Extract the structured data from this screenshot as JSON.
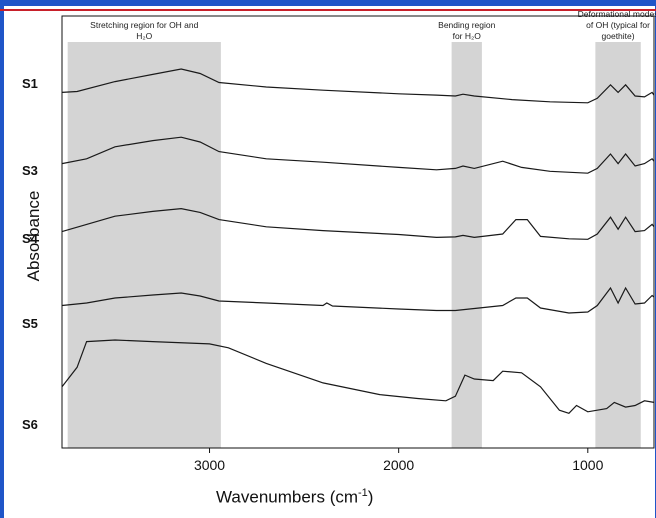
{
  "chart_data": {
    "type": "line",
    "xlabel": "Wavenumbers (cm",
    "xlabel_sup": "-1",
    "xlabel_end": ")",
    "ylabel": "Absorbance",
    "xlim": [
      3780,
      650
    ],
    "x_reversed": true,
    "grid": false,
    "x_ticks": [
      "3000",
      "2000",
      "1000"
    ],
    "regions": [
      {
        "lines": [
          "Stretching region for OH and",
          "H₂O"
        ],
        "range": [
          3750,
          2940
        ]
      },
      {
        "lines": [
          "Bending region",
          "for H₂O"
        ],
        "range": [
          1720,
          1560
        ]
      },
      {
        "lines": [
          "Deformational modes",
          "of OH (typical for",
          "goethite)"
        ],
        "range": [
          960,
          720
        ]
      }
    ],
    "series": [
      {
        "name": "S1",
        "points": [
          [
            3780,
            0.28
          ],
          [
            3700,
            0.3
          ],
          [
            3500,
            0.52
          ],
          [
            3300,
            0.68
          ],
          [
            3150,
            0.8
          ],
          [
            3050,
            0.7
          ],
          [
            2950,
            0.5
          ],
          [
            2700,
            0.4
          ],
          [
            2400,
            0.33
          ],
          [
            2000,
            0.25
          ],
          [
            1800,
            0.22
          ],
          [
            1700,
            0.2
          ],
          [
            1660,
            0.24
          ],
          [
            1600,
            0.2
          ],
          [
            1400,
            0.12
          ],
          [
            1200,
            0.07
          ],
          [
            1000,
            0.05
          ],
          [
            950,
            0.15
          ],
          [
            880,
            0.45
          ],
          [
            840,
            0.28
          ],
          [
            800,
            0.45
          ],
          [
            750,
            0.2
          ],
          [
            700,
            0.18
          ],
          [
            660,
            0.28
          ],
          [
            650,
            0.22
          ]
        ]
      },
      {
        "name": "S3",
        "points": [
          [
            3780,
            0.3
          ],
          [
            3650,
            0.4
          ],
          [
            3500,
            0.65
          ],
          [
            3300,
            0.78
          ],
          [
            3150,
            0.85
          ],
          [
            3050,
            0.75
          ],
          [
            2950,
            0.55
          ],
          [
            2700,
            0.4
          ],
          [
            2400,
            0.33
          ],
          [
            2000,
            0.22
          ],
          [
            1800,
            0.17
          ],
          [
            1700,
            0.2
          ],
          [
            1660,
            0.25
          ],
          [
            1600,
            0.2
          ],
          [
            1450,
            0.35
          ],
          [
            1350,
            0.22
          ],
          [
            1200,
            0.14
          ],
          [
            1000,
            0.1
          ],
          [
            950,
            0.2
          ],
          [
            880,
            0.5
          ],
          [
            840,
            0.3
          ],
          [
            800,
            0.5
          ],
          [
            750,
            0.25
          ],
          [
            700,
            0.3
          ],
          [
            660,
            0.4
          ],
          [
            650,
            0.35
          ]
        ]
      },
      {
        "name": "S4",
        "points": [
          [
            3780,
            0.3
          ],
          [
            3650,
            0.45
          ],
          [
            3500,
            0.62
          ],
          [
            3300,
            0.72
          ],
          [
            3150,
            0.78
          ],
          [
            3050,
            0.7
          ],
          [
            2950,
            0.55
          ],
          [
            2700,
            0.4
          ],
          [
            2400,
            0.32
          ],
          [
            2000,
            0.24
          ],
          [
            1800,
            0.18
          ],
          [
            1700,
            0.19
          ],
          [
            1660,
            0.22
          ],
          [
            1600,
            0.18
          ],
          [
            1450,
            0.25
          ],
          [
            1380,
            0.55
          ],
          [
            1320,
            0.55
          ],
          [
            1250,
            0.2
          ],
          [
            1100,
            0.15
          ],
          [
            1000,
            0.14
          ],
          [
            950,
            0.25
          ],
          [
            880,
            0.6
          ],
          [
            840,
            0.35
          ],
          [
            800,
            0.6
          ],
          [
            750,
            0.3
          ],
          [
            700,
            0.32
          ],
          [
            660,
            0.45
          ],
          [
            650,
            0.4
          ]
        ]
      },
      {
        "name": "S5",
        "points": [
          [
            3780,
            0.25
          ],
          [
            3650,
            0.3
          ],
          [
            3500,
            0.4
          ],
          [
            3300,
            0.46
          ],
          [
            3150,
            0.5
          ],
          [
            3050,
            0.44
          ],
          [
            2950,
            0.34
          ],
          [
            2700,
            0.3
          ],
          [
            2400,
            0.25
          ],
          [
            2380,
            0.3
          ],
          [
            2350,
            0.24
          ],
          [
            2000,
            0.18
          ],
          [
            1800,
            0.15
          ],
          [
            1700,
            0.15
          ],
          [
            1450,
            0.25
          ],
          [
            1380,
            0.4
          ],
          [
            1320,
            0.4
          ],
          [
            1250,
            0.2
          ],
          [
            1100,
            0.1
          ],
          [
            1000,
            0.12
          ],
          [
            950,
            0.25
          ],
          [
            880,
            0.6
          ],
          [
            840,
            0.3
          ],
          [
            800,
            0.6
          ],
          [
            750,
            0.28
          ],
          [
            700,
            0.3
          ],
          [
            660,
            0.45
          ],
          [
            650,
            0.42
          ]
        ]
      },
      {
        "name": "S6",
        "points": [
          [
            3780,
            0.4
          ],
          [
            3700,
            0.65
          ],
          [
            3650,
            0.98
          ],
          [
            3500,
            1.0
          ],
          [
            3300,
            0.98
          ],
          [
            3000,
            0.95
          ],
          [
            2900,
            0.9
          ],
          [
            2700,
            0.7
          ],
          [
            2400,
            0.45
          ],
          [
            2100,
            0.3
          ],
          [
            1900,
            0.25
          ],
          [
            1750,
            0.22
          ],
          [
            1700,
            0.28
          ],
          [
            1650,
            0.55
          ],
          [
            1600,
            0.5
          ],
          [
            1500,
            0.48
          ],
          [
            1450,
            0.6
          ],
          [
            1350,
            0.58
          ],
          [
            1250,
            0.4
          ],
          [
            1150,
            0.1
          ],
          [
            1100,
            0.06
          ],
          [
            1060,
            0.16
          ],
          [
            1000,
            0.08
          ],
          [
            900,
            0.12
          ],
          [
            860,
            0.2
          ],
          [
            800,
            0.14
          ],
          [
            750,
            0.16
          ],
          [
            700,
            0.22
          ],
          [
            650,
            0.2
          ]
        ]
      }
    ]
  }
}
